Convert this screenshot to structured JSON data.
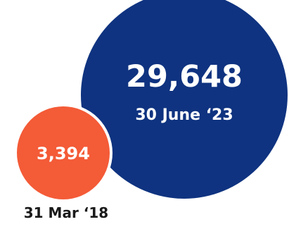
{
  "chart_data": {
    "type": "bubble",
    "title": "",
    "points": [
      {
        "value": 3394,
        "value_label": "3,394",
        "date_label": "31 Mar ‘18",
        "color": "#F45B37",
        "label_color": "#1A1A1A"
      },
      {
        "value": 29648,
        "value_label": "29,648",
        "date_label": "30 June ‘23",
        "color": "#0F3380",
        "label_color": "#FFFFFF"
      }
    ],
    "background": "#FFFFFF"
  }
}
